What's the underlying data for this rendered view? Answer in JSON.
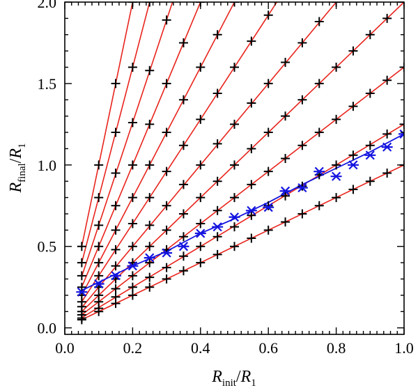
{
  "chart_data": {
    "type": "scatter",
    "title": "",
    "xlabel": {
      "main": "R",
      "sub": "init",
      "denom": "R",
      "denom_sub": "1"
    },
    "ylabel": {
      "main": "R",
      "sub": "final",
      "denom": "R",
      "denom_sub": "1"
    },
    "xlim": [
      0.0,
      1.0
    ],
    "ylim": [
      -0.04,
      2.0
    ],
    "x_ticks": [
      0.0,
      0.2,
      0.4,
      0.6,
      0.8,
      1.0
    ],
    "x_tick_labels": [
      "0.0",
      "0.2",
      "0.4",
      "0.6",
      "0.8",
      "1.0"
    ],
    "y_ticks": [
      0.0,
      0.5,
      1.0,
      1.5,
      2.0
    ],
    "y_tick_labels": [
      "0.0",
      "0.5",
      "1.0",
      "1.5",
      "2.0"
    ],
    "grid": false,
    "x": [
      0.05,
      0.1,
      0.15,
      0.2,
      0.25,
      0.3,
      0.35,
      0.4,
      0.45,
      0.5,
      0.55,
      0.6,
      0.65,
      0.7,
      0.75,
      0.8,
      0.85,
      0.9,
      0.95,
      1.0
    ],
    "line_slopes": [
      1.0,
      1.25,
      1.6,
      2.0,
      2.5,
      3.2,
      4.0,
      5.0,
      6.3,
      8.0,
      10.0
    ],
    "cross_series": [
      {
        "name": "slope 1.0",
        "values": [
          0.05,
          0.1,
          0.15,
          0.2,
          0.25,
          0.3,
          0.35,
          0.4,
          0.45,
          0.5,
          0.55,
          0.6,
          0.65,
          0.7,
          0.75,
          0.8,
          0.85,
          0.9,
          0.95,
          1.0
        ]
      },
      {
        "name": "slope 1.25",
        "values": [
          0.06,
          0.12,
          0.19,
          0.25,
          0.31,
          0.37,
          0.44,
          0.5,
          0.56,
          0.62,
          0.69,
          0.75,
          0.81,
          0.87,
          0.94,
          1.0,
          1.06,
          1.12,
          1.19,
          1.25
        ]
      },
      {
        "name": "slope 1.6",
        "values": [
          0.08,
          0.16,
          0.24,
          0.32,
          0.4,
          0.48,
          0.56,
          0.64,
          0.72,
          0.8,
          0.88,
          0.96,
          1.04,
          1.12,
          1.2,
          1.28,
          1.36,
          1.44,
          1.52,
          1.6
        ]
      },
      {
        "name": "slope 2.0",
        "values": [
          0.1,
          0.2,
          0.3,
          0.4,
          0.5,
          0.6,
          0.7,
          0.8,
          0.9,
          1.0,
          1.1,
          1.2,
          1.3,
          1.4,
          1.5,
          1.6,
          1.7,
          1.8,
          1.9,
          2.0
        ]
      },
      {
        "name": "slope 2.5",
        "values": [
          0.13,
          0.25,
          0.38,
          0.5,
          0.63,
          0.75,
          0.88,
          1.0,
          1.13,
          1.25,
          1.38,
          1.5,
          1.63,
          1.75,
          1.88,
          2.0
        ]
      },
      {
        "name": "slope 3.2",
        "values": [
          0.16,
          0.32,
          0.48,
          0.64,
          0.8,
          0.96,
          1.12,
          1.28,
          1.44,
          1.6,
          1.76,
          1.92
        ]
      },
      {
        "name": "slope 4.0",
        "values": [
          0.2,
          0.4,
          0.6,
          0.8,
          1.0,
          1.2,
          1.4,
          1.6,
          1.8,
          2.0
        ]
      },
      {
        "name": "slope 5.0",
        "values": [
          0.25,
          0.5,
          0.75,
          1.0,
          1.25,
          1.5,
          1.75,
          2.0
        ]
      },
      {
        "name": "slope 6.3",
        "values": [
          0.32,
          0.63,
          0.95,
          1.26,
          1.58,
          1.89
        ]
      },
      {
        "name": "slope 8.0",
        "values": [
          0.4,
          0.8,
          1.2,
          1.6,
          2.0
        ]
      },
      {
        "name": "slope 10.0",
        "values": [
          0.5,
          1.0,
          1.5,
          2.0
        ]
      }
    ],
    "highlight_series": {
      "name": "blue asterisks",
      "marker": "asterisk",
      "values": [
        0.22,
        0.27,
        0.32,
        0.38,
        0.43,
        0.46,
        0.5,
        0.58,
        0.62,
        0.68,
        0.72,
        0.74,
        0.84,
        0.86,
        0.96,
        0.93,
        1.0,
        1.06,
        1.11,
        1.19
      ]
    },
    "highlight_fit": {
      "name": "blue fit curve",
      "x": [
        0.05,
        0.1,
        0.15,
        0.2,
        0.3,
        0.4,
        0.5,
        0.6,
        0.7,
        0.8,
        0.9,
        1.0
      ],
      "y": [
        0.23,
        0.28,
        0.33,
        0.38,
        0.47,
        0.58,
        0.67,
        0.77,
        0.88,
        0.98,
        1.08,
        1.19
      ]
    },
    "colors": {
      "lines": "#e8231c",
      "crosses": "#000000",
      "highlight": "#1414e0",
      "axes": "#000000"
    }
  }
}
